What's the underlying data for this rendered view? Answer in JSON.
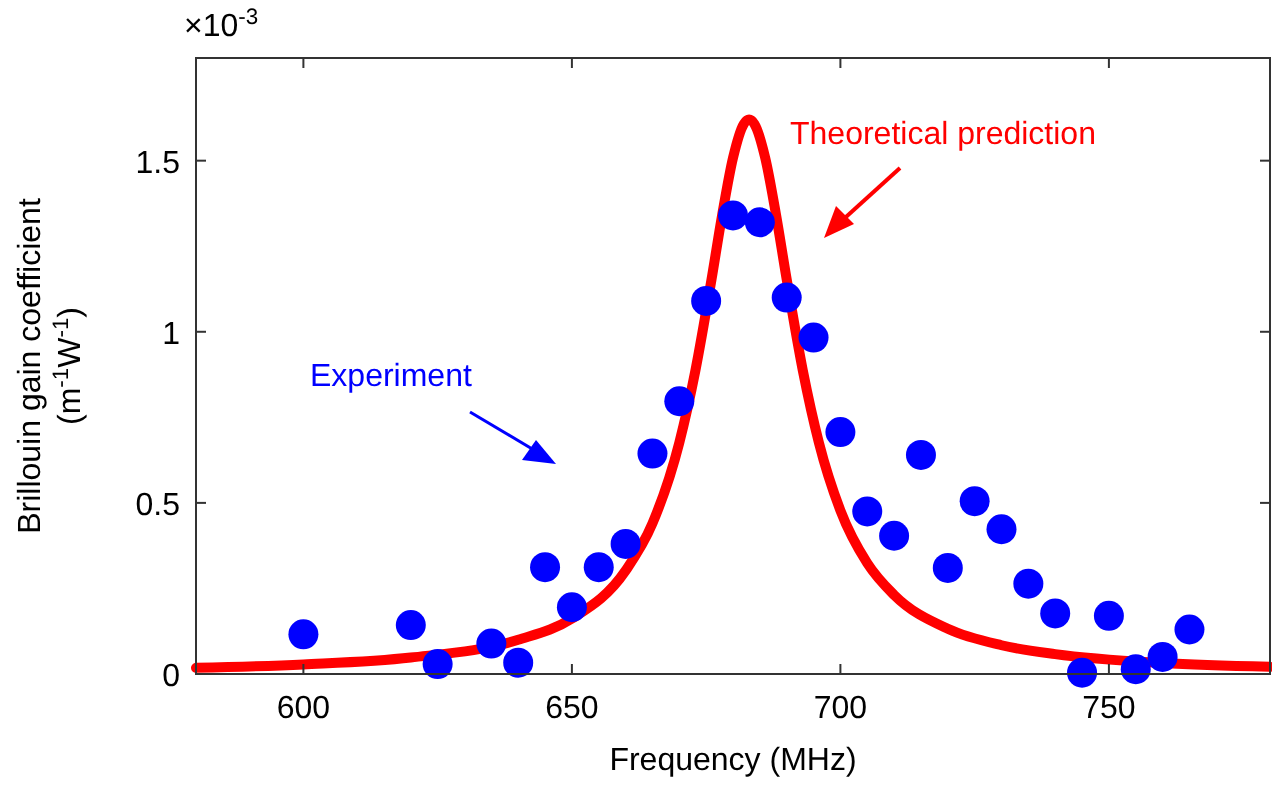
{
  "chart_data": {
    "type": "scatter",
    "xlabel": "Frequency (MHz)",
    "ylabel": "Brillouin gain coefficient (m$^{-1}$W$^{-1}$)",
    "xlim": [
      580,
      780
    ],
    "xticks": [
      600,
      650,
      700,
      750
    ],
    "ylim": [
      0,
      1.8
    ],
    "yticks": [
      0,
      0.5,
      1,
      1.5
    ],
    "grid": false,
    "marker": "circle",
    "annotations": [
      "×10$^{-3}$",
      "Experiment",
      "Theoretical prediction"
    ],
    "series": [
      {
        "type": "line",
        "color": "#ff0000",
        "line_style": "solid",
        "marker": "none",
        "x": [
          580,
          600,
          620,
          640,
          650,
          660,
          665,
          670,
          673,
          676,
          678,
          680,
          682,
          683,
          684,
          686,
          688,
          690,
          693,
          696,
          700,
          705,
          710,
          720,
          730,
          740,
          760,
          780
        ],
        "values": [
          0.018,
          0.028,
          0.048,
          0.1,
          0.162,
          0.302,
          0.44,
          0.676,
          0.887,
          1.153,
          1.343,
          1.508,
          1.607,
          1.62,
          1.607,
          1.508,
          1.343,
          1.153,
          0.887,
          0.676,
          0.478,
          0.324,
          0.231,
          0.132,
          0.084,
          0.058,
          0.032,
          0.021
        ]
      },
      {
        "color": "#0000ff",
        "x": [
          600,
          620,
          625,
          635,
          640,
          645,
          650,
          655,
          660,
          665,
          670,
          675,
          680,
          685,
          690,
          695,
          700,
          705,
          710,
          715,
          720,
          725,
          730,
          735,
          740,
          745,
          750,
          755,
          760,
          765
        ],
        "values": [
          0.116,
          0.143,
          0.029,
          0.089,
          0.033,
          0.312,
          0.195,
          0.312,
          0.38,
          0.644,
          0.797,
          1.09,
          1.34,
          1.32,
          1.1,
          0.983,
          0.707,
          0.475,
          0.404,
          0.64,
          0.31,
          0.505,
          0.423,
          0.264,
          0.177,
          0.004,
          0.17,
          0.014,
          0.05,
          0.13
        ]
      }
    ]
  }
}
